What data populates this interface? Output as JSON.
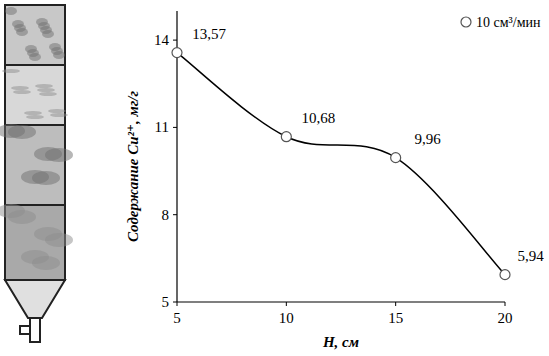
{
  "chart_data": {
    "type": "line",
    "x": [
      5,
      10,
      15,
      20
    ],
    "series": [
      {
        "name": "10 см³/мин",
        "color": "#000000",
        "values": [
          13.57,
          10.68,
          9.96,
          5.94
        ],
        "value_labels": [
          "13,57",
          "10,68",
          "9,96",
          "5,94"
        ],
        "marker": "circle",
        "line_style": "smooth"
      }
    ],
    "x_label": "H, см",
    "y_label": "Содержание Cu²⁺, мг/г",
    "xlim": [
      5,
      20
    ],
    "xticks": [
      5,
      10,
      15,
      20
    ],
    "ylim": [
      5,
      15
    ],
    "yticks": [
      5,
      8,
      11,
      14
    ],
    "grid": false,
    "legend": "top-right",
    "data_labels": true
  }
}
